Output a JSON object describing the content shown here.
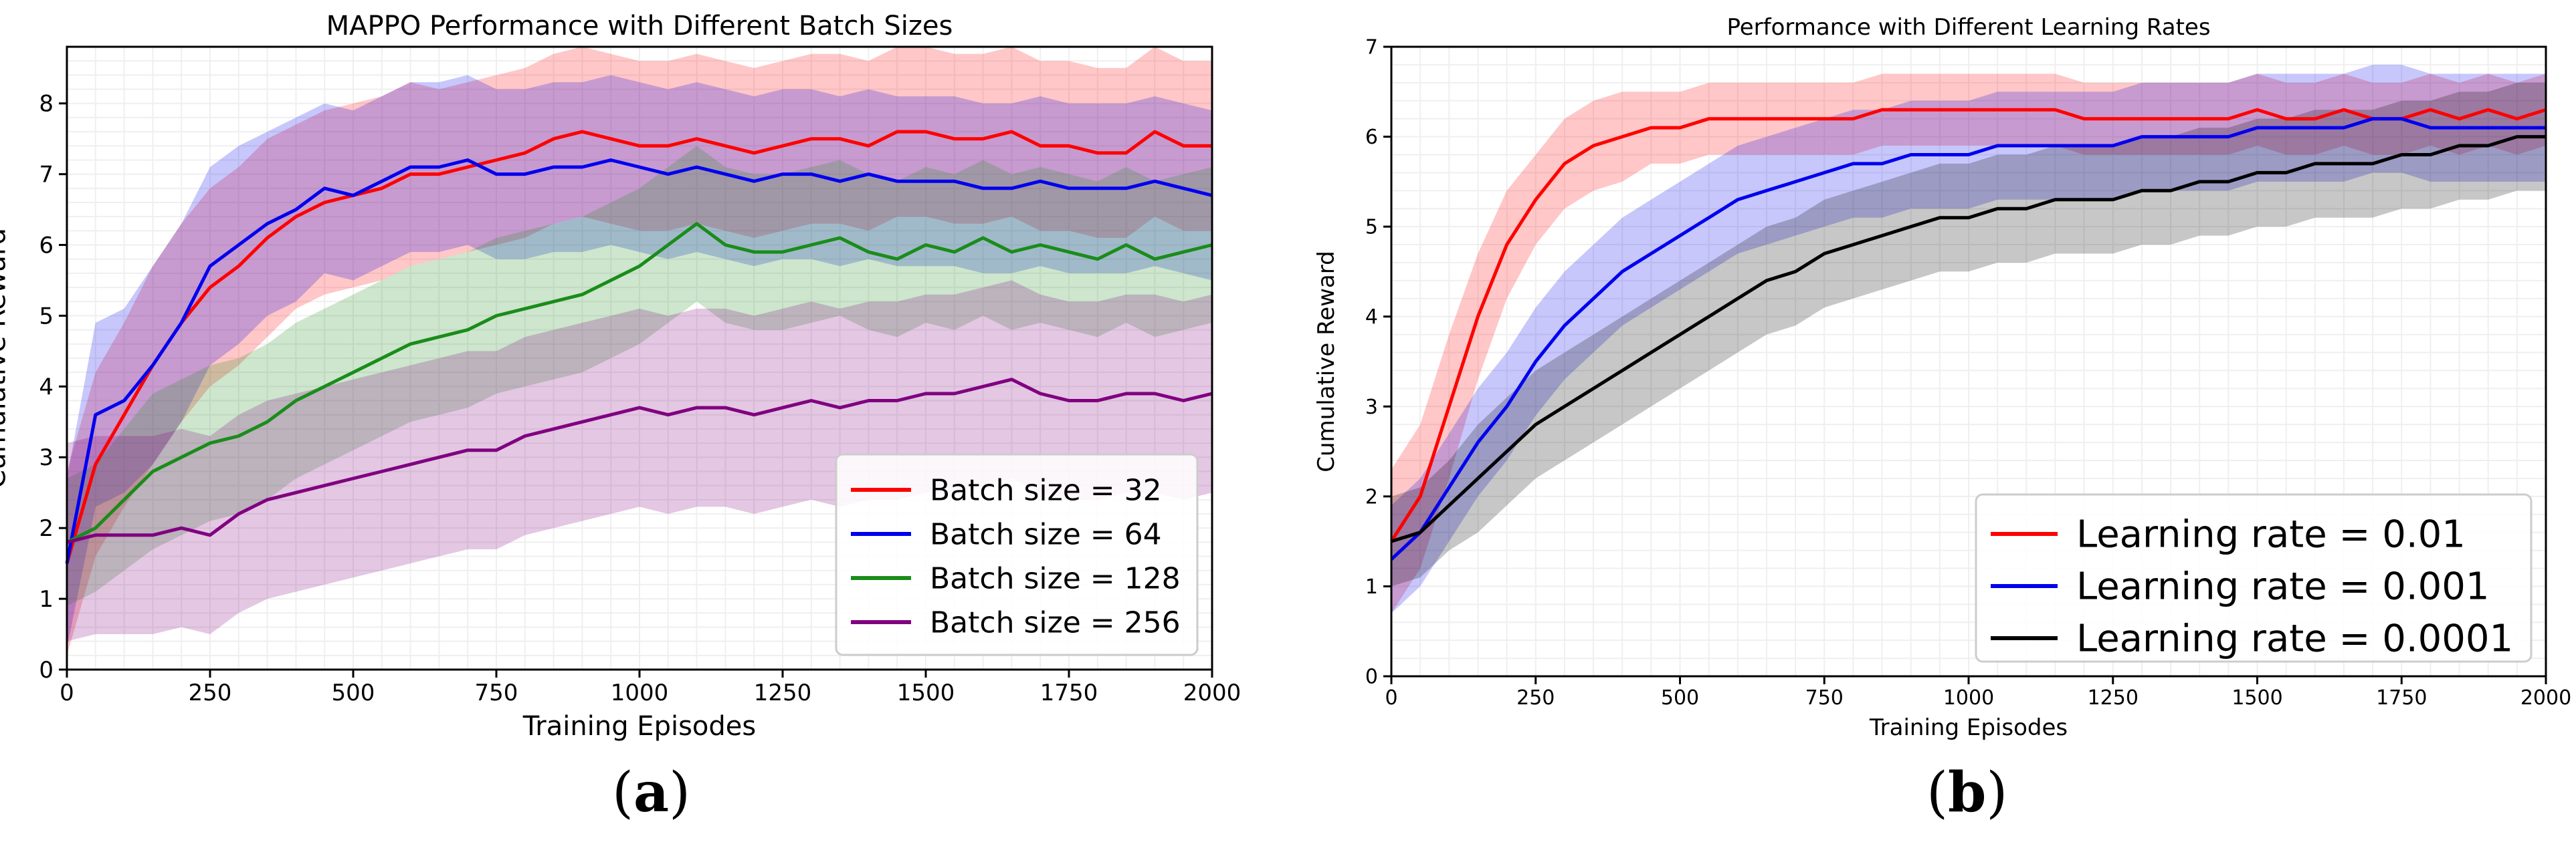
{
  "panel_labels": {
    "a": "a",
    "b": "b"
  },
  "chart_data": [
    {
      "type": "line",
      "title": "MAPPO Performance with Different Batch Sizes",
      "xlabel": "Training Episodes",
      "ylabel": "Cumulative Reward",
      "xlim": [
        0,
        2000
      ],
      "ylim": [
        0,
        8.8
      ],
      "xticks": [
        0,
        250,
        500,
        750,
        1000,
        1250,
        1500,
        1750,
        2000
      ],
      "xtick_labels": [
        "0",
        "250",
        "500",
        "750",
        "1000",
        "1250",
        "1500",
        "1750",
        "2000"
      ],
      "yticks": [
        0,
        1,
        2,
        3,
        4,
        5,
        6,
        7,
        8
      ],
      "ytick_labels": [
        "0",
        "1",
        "2",
        "3",
        "4",
        "5",
        "6",
        "7",
        "8"
      ],
      "grid": true,
      "legend_position": "lower-right",
      "x": [
        0,
        50,
        100,
        150,
        200,
        250,
        300,
        350,
        400,
        450,
        500,
        550,
        600,
        650,
        700,
        750,
        800,
        850,
        900,
        950,
        1000,
        1050,
        1100,
        1150,
        1200,
        1250,
        1300,
        1350,
        1400,
        1450,
        1500,
        1550,
        1600,
        1650,
        1700,
        1750,
        1800,
        1850,
        1900,
        1950,
        2000
      ],
      "series": [
        {
          "name": "Batch size = 32",
          "color": "#ff0000",
          "values": [
            1.5,
            2.9,
            3.6,
            4.3,
            4.9,
            5.4,
            5.7,
            6.1,
            6.4,
            6.6,
            6.7,
            6.8,
            7.0,
            7.0,
            7.1,
            7.2,
            7.3,
            7.5,
            7.6,
            7.5,
            7.4,
            7.4,
            7.5,
            7.4,
            7.3,
            7.4,
            7.5,
            7.5,
            7.4,
            7.6,
            7.6,
            7.5,
            7.5,
            7.6,
            7.4,
            7.4,
            7.3,
            7.3,
            7.6,
            7.4,
            7.4
          ],
          "band": [
            1.3,
            1.3,
            1.3,
            1.4,
            1.4,
            1.4,
            1.4,
            1.4,
            1.3,
            1.3,
            1.3,
            1.3,
            1.3,
            1.2,
            1.2,
            1.2,
            1.2,
            1.2,
            1.2,
            1.2,
            1.2,
            1.2,
            1.2,
            1.2,
            1.2,
            1.2,
            1.2,
            1.2,
            1.2,
            1.2,
            1.2,
            1.2,
            1.2,
            1.2,
            1.2,
            1.2,
            1.2,
            1.2,
            1.2,
            1.2,
            1.2
          ]
        },
        {
          "name": "Batch size = 64",
          "color": "#0000ee",
          "values": [
            1.5,
            3.6,
            3.8,
            4.3,
            4.9,
            5.7,
            6.0,
            6.3,
            6.5,
            6.8,
            6.7,
            6.9,
            7.1,
            7.1,
            7.2,
            7.0,
            7.0,
            7.1,
            7.1,
            7.2,
            7.1,
            7.0,
            7.1,
            7.0,
            6.9,
            7.0,
            7.0,
            6.9,
            7.0,
            6.9,
            6.9,
            6.9,
            6.8,
            6.8,
            6.9,
            6.8,
            6.8,
            6.8,
            6.9,
            6.8,
            6.7
          ],
          "band": [
            1.2,
            1.3,
            1.3,
            1.4,
            1.4,
            1.4,
            1.4,
            1.3,
            1.3,
            1.2,
            1.2,
            1.2,
            1.2,
            1.2,
            1.2,
            1.2,
            1.2,
            1.2,
            1.2,
            1.2,
            1.2,
            1.2,
            1.2,
            1.2,
            1.2,
            1.2,
            1.2,
            1.2,
            1.2,
            1.2,
            1.2,
            1.2,
            1.2,
            1.2,
            1.2,
            1.2,
            1.2,
            1.2,
            1.2,
            1.2,
            1.2
          ]
        },
        {
          "name": "Batch size = 128",
          "color": "#1a8c1a",
          "values": [
            1.8,
            2.0,
            2.4,
            2.8,
            3.0,
            3.2,
            3.3,
            3.5,
            3.8,
            4.0,
            4.2,
            4.4,
            4.6,
            4.7,
            4.8,
            5.0,
            5.1,
            5.2,
            5.3,
            5.5,
            5.7,
            6.0,
            6.3,
            6.0,
            5.9,
            5.9,
            6.0,
            6.1,
            5.9,
            5.8,
            6.0,
            5.9,
            6.1,
            5.9,
            6.0,
            5.9,
            5.8,
            6.0,
            5.8,
            5.9,
            6.0
          ],
          "band": [
            0.9,
            0.9,
            1.0,
            1.1,
            1.1,
            1.1,
            1.1,
            1.1,
            1.1,
            1.1,
            1.1,
            1.1,
            1.1,
            1.1,
            1.1,
            1.1,
            1.1,
            1.1,
            1.1,
            1.1,
            1.1,
            1.1,
            1.1,
            1.1,
            1.1,
            1.1,
            1.1,
            1.1,
            1.1,
            1.1,
            1.1,
            1.1,
            1.1,
            1.1,
            1.1,
            1.1,
            1.1,
            1.1,
            1.1,
            1.1,
            1.1
          ]
        },
        {
          "name": "Batch size = 256",
          "color": "#800080",
          "values": [
            1.8,
            1.9,
            1.9,
            1.9,
            2.0,
            1.9,
            2.2,
            2.4,
            2.5,
            2.6,
            2.7,
            2.8,
            2.9,
            3.0,
            3.1,
            3.1,
            3.3,
            3.4,
            3.5,
            3.6,
            3.7,
            3.6,
            3.7,
            3.7,
            3.6,
            3.7,
            3.8,
            3.7,
            3.8,
            3.8,
            3.9,
            3.9,
            4.0,
            4.1,
            3.9,
            3.8,
            3.8,
            3.9,
            3.9,
            3.8,
            3.9
          ],
          "band": [
            1.4,
            1.4,
            1.4,
            1.4,
            1.4,
            1.4,
            1.4,
            1.4,
            1.4,
            1.4,
            1.4,
            1.4,
            1.4,
            1.4,
            1.4,
            1.4,
            1.4,
            1.4,
            1.4,
            1.4,
            1.4,
            1.4,
            1.4,
            1.4,
            1.4,
            1.4,
            1.4,
            1.4,
            1.4,
            1.4,
            1.4,
            1.4,
            1.4,
            1.4,
            1.4,
            1.4,
            1.4,
            1.4,
            1.4,
            1.4,
            1.4
          ]
        }
      ]
    },
    {
      "type": "line",
      "title": "Performance with Different Learning Rates",
      "xlabel": "Training Episodes",
      "ylabel": "Cumulative Reward",
      "xlim": [
        0,
        2000
      ],
      "ylim": [
        0,
        7
      ],
      "xticks": [
        0,
        250,
        500,
        750,
        1000,
        1250,
        1500,
        1750,
        2000
      ],
      "xtick_labels": [
        "0",
        "250",
        "500",
        "750",
        "1000",
        "1250",
        "1500",
        "1750",
        "2000"
      ],
      "yticks": [
        0,
        1,
        2,
        3,
        4,
        5,
        6,
        7
      ],
      "ytick_labels": [
        "0",
        "1",
        "2",
        "3",
        "4",
        "5",
        "6",
        "7"
      ],
      "grid": true,
      "legend_position": "lower-right",
      "x": [
        0,
        50,
        100,
        150,
        200,
        250,
        300,
        350,
        400,
        450,
        500,
        550,
        600,
        650,
        700,
        750,
        800,
        850,
        900,
        950,
        1000,
        1050,
        1100,
        1150,
        1200,
        1250,
        1300,
        1350,
        1400,
        1450,
        1500,
        1550,
        1600,
        1650,
        1700,
        1750,
        1800,
        1850,
        1900,
        1950,
        2000
      ],
      "series": [
        {
          "name": "Learning rate = 0.01",
          "color": "#ff0000",
          "values": [
            1.5,
            2.0,
            3.0,
            4.0,
            4.8,
            5.3,
            5.7,
            5.9,
            6.0,
            6.1,
            6.1,
            6.2,
            6.2,
            6.2,
            6.2,
            6.2,
            6.2,
            6.3,
            6.3,
            6.3,
            6.3,
            6.3,
            6.3,
            6.3,
            6.2,
            6.2,
            6.2,
            6.2,
            6.2,
            6.2,
            6.3,
            6.2,
            6.2,
            6.3,
            6.2,
            6.2,
            6.3,
            6.2,
            6.3,
            6.2,
            6.3
          ],
          "band": [
            0.8,
            0.8,
            0.8,
            0.7,
            0.6,
            0.5,
            0.5,
            0.5,
            0.5,
            0.4,
            0.4,
            0.4,
            0.4,
            0.4,
            0.4,
            0.4,
            0.4,
            0.4,
            0.4,
            0.4,
            0.4,
            0.4,
            0.4,
            0.4,
            0.4,
            0.4,
            0.4,
            0.4,
            0.4,
            0.4,
            0.4,
            0.4,
            0.4,
            0.4,
            0.4,
            0.4,
            0.4,
            0.4,
            0.4,
            0.4,
            0.4
          ]
        },
        {
          "name": "Learning rate = 0.001",
          "color": "#0000ee",
          "values": [
            1.3,
            1.6,
            2.1,
            2.6,
            3.0,
            3.5,
            3.9,
            4.2,
            4.5,
            4.7,
            4.9,
            5.1,
            5.3,
            5.4,
            5.5,
            5.6,
            5.7,
            5.7,
            5.8,
            5.8,
            5.8,
            5.9,
            5.9,
            5.9,
            5.9,
            5.9,
            6.0,
            6.0,
            6.0,
            6.0,
            6.1,
            6.1,
            6.1,
            6.1,
            6.2,
            6.2,
            6.1,
            6.1,
            6.1,
            6.1,
            6.1
          ],
          "band": [
            0.6,
            0.6,
            0.6,
            0.6,
            0.6,
            0.6,
            0.6,
            0.6,
            0.6,
            0.6,
            0.6,
            0.6,
            0.6,
            0.6,
            0.6,
            0.6,
            0.6,
            0.6,
            0.6,
            0.6,
            0.6,
            0.6,
            0.6,
            0.6,
            0.6,
            0.6,
            0.6,
            0.6,
            0.6,
            0.6,
            0.6,
            0.6,
            0.6,
            0.6,
            0.6,
            0.6,
            0.6,
            0.6,
            0.6,
            0.6,
            0.6
          ]
        },
        {
          "name": "Learning rate = 0.0001",
          "color": "#000000",
          "values": [
            1.5,
            1.6,
            1.9,
            2.2,
            2.5,
            2.8,
            3.0,
            3.2,
            3.4,
            3.6,
            3.8,
            4.0,
            4.2,
            4.4,
            4.5,
            4.7,
            4.8,
            4.9,
            5.0,
            5.1,
            5.1,
            5.2,
            5.2,
            5.3,
            5.3,
            5.3,
            5.4,
            5.4,
            5.5,
            5.5,
            5.6,
            5.6,
            5.7,
            5.7,
            5.7,
            5.8,
            5.8,
            5.9,
            5.9,
            6.0,
            6.0
          ],
          "band": [
            0.5,
            0.5,
            0.5,
            0.6,
            0.6,
            0.6,
            0.6,
            0.6,
            0.6,
            0.6,
            0.6,
            0.6,
            0.6,
            0.6,
            0.6,
            0.6,
            0.6,
            0.6,
            0.6,
            0.6,
            0.6,
            0.6,
            0.6,
            0.6,
            0.6,
            0.6,
            0.6,
            0.6,
            0.6,
            0.6,
            0.6,
            0.6,
            0.6,
            0.6,
            0.6,
            0.6,
            0.6,
            0.6,
            0.6,
            0.6,
            0.6
          ]
        }
      ]
    }
  ]
}
